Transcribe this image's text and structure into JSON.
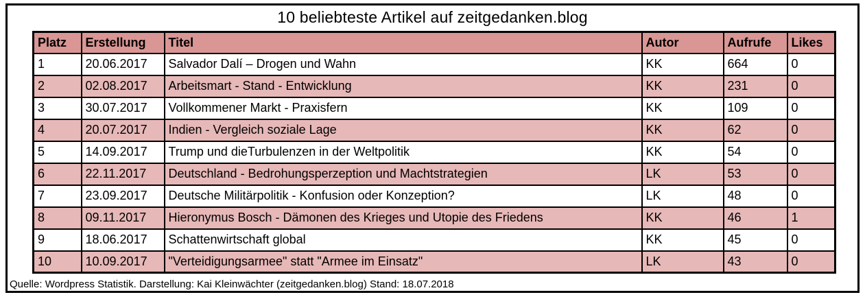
{
  "title": "10 beliebteste Artikel auf zeitgedanken.blog",
  "footer_note": "Quelle: Wordpress Statistik. Darstellung: Kai Kleinwächter (zeitgedanken.blog) Stand: 18.07.2018",
  "colors": {
    "header_bg": "#D99694",
    "row_alt_bg": "#E6B8B7",
    "border": "#000000",
    "text": "#000000",
    "background": "#FFFFFF"
  },
  "chart_data": {
    "type": "table",
    "title": "10 beliebteste Artikel auf zeitgedanken.blog",
    "columns": [
      "Platz",
      "Erstellung",
      "Titel",
      "Autor",
      "Aufrufe",
      "Likes"
    ],
    "rows": [
      [
        "1",
        "20.06.2017",
        "Salvador Dalí – Drogen und Wahn",
        "KK",
        "664",
        "0"
      ],
      [
        "2",
        "02.08.2017",
        "Arbeitsmart - Stand - Entwicklung",
        "KK",
        "231",
        "0"
      ],
      [
        "3",
        "30.07.2017",
        "Vollkommener Markt - Praxisfern",
        "KK",
        "109",
        "0"
      ],
      [
        "4",
        "20.07.2017",
        "Indien - Vergleich soziale Lage",
        "KK",
        "62",
        "0"
      ],
      [
        "5",
        "14.09.2017",
        "Trump und dieTurbulenzen in der Weltpolitik",
        "KK",
        "54",
        "0"
      ],
      [
        "6",
        "22.11.2017",
        "Deutschland - Bedrohungsperzeption und Machtstrategien",
        "LK",
        "53",
        "0"
      ],
      [
        "7",
        "23.09.2017",
        "Deutsche Militärpolitik - Konfusion oder Konzeption?",
        "LK",
        "48",
        "0"
      ],
      [
        "8",
        "09.11.2017",
        "Hieronymus Bosch - Dämonen des Krieges und Utopie des Friedens",
        "KK",
        "46",
        "1"
      ],
      [
        "9",
        "18.06.2017",
        "Schattenwirtschaft global",
        "KK",
        "45",
        "0"
      ],
      [
        "10",
        "10.09.2017",
        "\"Verteidigungsarmee\" statt \"Armee im Einsatz\"",
        "LK",
        "43",
        "0"
      ]
    ],
    "notes": "Rows of even Platz are shaded rose; source note shown below table",
    "source_note": "Quelle: Wordpress Statistik. Darstellung: Kai Kleinwächter (zeitgedanken.blog) Stand: 18.07.2018"
  }
}
